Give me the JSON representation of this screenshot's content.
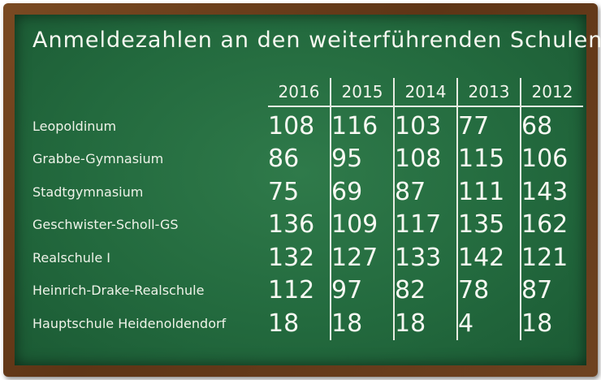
{
  "chart_data": {
    "type": "table",
    "title": "Anmeldezahlen an den weiterführenden Schulen",
    "columns": [
      "2016",
      "2015",
      "2014",
      "2013",
      "2012"
    ],
    "rows": [
      {
        "name": "Leopoldinum",
        "values": [
          108,
          116,
          103,
          77,
          68
        ]
      },
      {
        "name": "Grabbe-Gymnasium",
        "values": [
          86,
          95,
          108,
          115,
          106
        ]
      },
      {
        "name": "Stadtgymnasium",
        "values": [
          75,
          69,
          87,
          111,
          143
        ]
      },
      {
        "name": "Geschwister-Scholl-GS",
        "values": [
          136,
          109,
          117,
          135,
          162
        ]
      },
      {
        "name": "Realschule I",
        "values": [
          132,
          127,
          133,
          142,
          121
        ]
      },
      {
        "name": "Heinrich-Drake-Realschule",
        "values": [
          112,
          97,
          82,
          78,
          87
        ]
      },
      {
        "name": "Hauptschule Heidenoldendorf",
        "values": [
          18,
          18,
          18,
          4,
          18
        ]
      }
    ]
  },
  "colors": {
    "frame": "#6a3f1c",
    "board": "#256c40",
    "chalk": "#f4f6ee"
  }
}
